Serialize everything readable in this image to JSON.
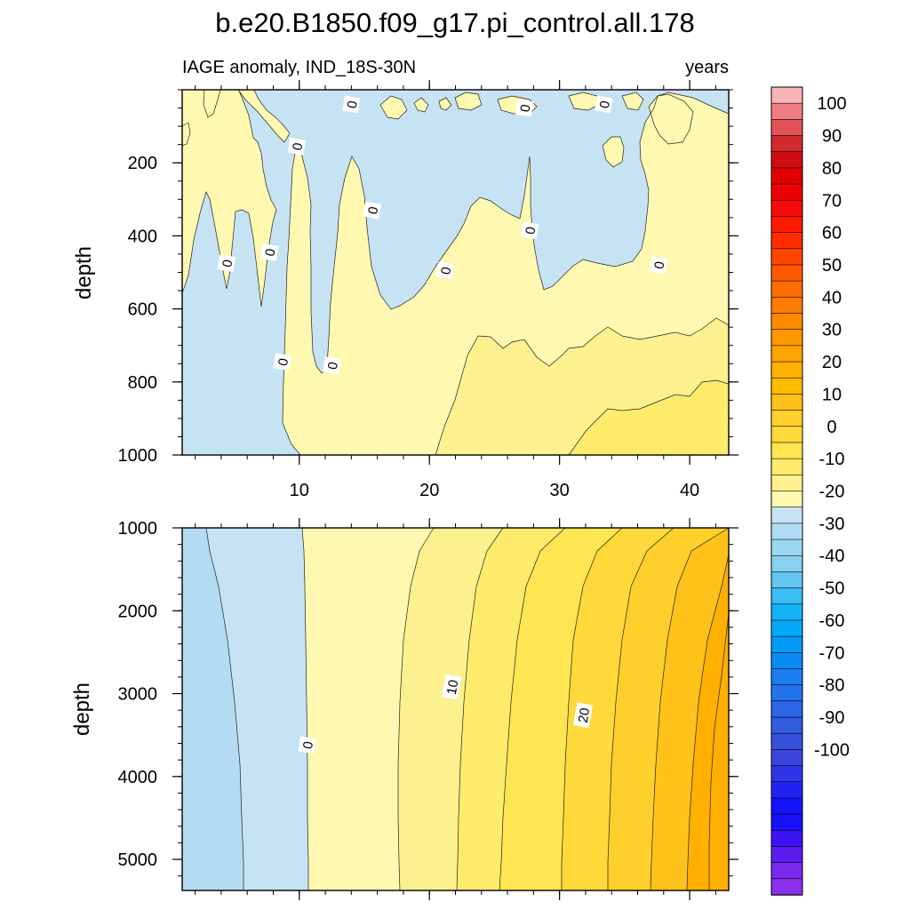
{
  "chart_data": [
    {
      "type": "contour",
      "title": "b.e20.B1850.f09_g17.pi_control.all.178",
      "left_string": "IAGE anomaly, IND_18S-30N",
      "right_string": "years",
      "ylabel": "depth",
      "x": {
        "range": [
          1,
          43
        ],
        "ticks": [
          10,
          20,
          30,
          40
        ],
        "minor_step": 2
      },
      "y": {
        "range": [
          0,
          1000
        ],
        "reversed": true,
        "ticks": [
          200,
          400,
          600,
          800,
          1000
        ],
        "minor_step": 50
      },
      "contour_labels": [
        {
          "text": "0",
          "x": 14,
          "y": 40
        },
        {
          "text": "0",
          "x": 27.3,
          "y": 50
        },
        {
          "text": "0",
          "x": 33.4,
          "y": 40
        },
        {
          "text": "0",
          "x": 9.8,
          "y": 155
        },
        {
          "text": "0",
          "x": 15.6,
          "y": 330
        },
        {
          "text": "0",
          "x": 27.7,
          "y": 385
        },
        {
          "text": "0",
          "x": 4.4,
          "y": 475
        },
        {
          "text": "0",
          "x": 7.7,
          "y": 445
        },
        {
          "text": "0",
          "x": 21.2,
          "y": 495
        },
        {
          "text": "0",
          "x": 37.6,
          "y": 480
        },
        {
          "text": "0",
          "x": 8.7,
          "y": 745
        },
        {
          "text": "0",
          "x": 12.5,
          "y": 755
        }
      ],
      "levels_shown": [
        {
          "value": "-5 to 0",
          "band": "-5..0"
        },
        {
          "value": "0 to 5",
          "band": "0..5"
        },
        {
          "value": "5 to 10",
          "band": "5..10"
        },
        {
          "value": "10 to 15",
          "band": "10..15"
        }
      ]
    },
    {
      "type": "contour",
      "ylabel": "depth",
      "x": {
        "range": [
          1,
          43
        ],
        "ticks": [
          10,
          20,
          30,
          40
        ],
        "minor_step": 2
      },
      "y": {
        "range": [
          1000,
          5375
        ],
        "reversed": true,
        "ticks": [
          1000,
          2000,
          3000,
          4000,
          5000
        ],
        "minor_step": 200
      },
      "contour_labels": [
        {
          "text": "0",
          "x": 10.6,
          "y": 3620
        },
        {
          "text": "10",
          "x": 21.7,
          "y": 2920
        },
        {
          "text": "20",
          "x": 31.8,
          "y": 3260
        }
      ],
      "levels_shown": [
        {
          "value": "-10 to -5",
          "band": "-10..-5"
        },
        {
          "value": "-5 to 0",
          "band": "-5..0"
        },
        {
          "value": "0 to 5",
          "band": "0..5"
        },
        {
          "value": "5 to 10",
          "band": "5..10"
        },
        {
          "value": "10 to 15",
          "band": "10..15"
        },
        {
          "value": "15 to 20",
          "band": "15..20"
        },
        {
          "value": "20 to 25",
          "band": "20..25"
        },
        {
          "value": "25 to 30",
          "band": "25..30"
        },
        {
          "value": "30 to 35",
          "band": "30..35"
        },
        {
          "value": "35 to 40",
          "band": "35..40"
        }
      ]
    }
  ],
  "colorbar": {
    "labels": [
      "100",
      "90",
      "80",
      "70",
      "60",
      "50",
      "40",
      "30",
      "20",
      "10",
      "0",
      "-10",
      "-20",
      "-30",
      "-40",
      "-50",
      "-60",
      "-70",
      "-80",
      "-90",
      "-100"
    ],
    "level_step": 5,
    "colors_top_to_bottom": [
      "#f8b3b6",
      "#ee7e84",
      "#e25256",
      "#d42a2c",
      "#d00c10",
      "#e00000",
      "#ee0000",
      "#f70a0a",
      "#ff1a00",
      "#ff2c00",
      "#ff4500",
      "#ff5a00",
      "#ff6d00",
      "#ff7c00",
      "#ff8a00",
      "#ff9800",
      "#ffa500",
      "#ffb000",
      "#ffbb00",
      "#ffc21a",
      "#ffd02c",
      "#ffd93a",
      "#fee551",
      "#fdeb6b",
      "#fdf08e",
      "#fff8b0",
      "#c6e3f3",
      "#b0ddf3",
      "#9cd7f1",
      "#88d1f0",
      "#63c6f2",
      "#3abcf5",
      "#12b2f6",
      "#06a8f9",
      "#0599f7",
      "#0a8af4",
      "#1a7ef0",
      "#2273ec",
      "#2a66e6",
      "#315ce0",
      "#3550da",
      "#3a44dc",
      "#2e34e8",
      "#2222f2",
      "#1414f8",
      "#1810f6",
      "#3a14f3",
      "#5a1cef",
      "#7a28ec",
      "#8a30ea"
    ]
  },
  "colors": {
    "neg10_5": "#b3dcf2",
    "neg5_0": "#c6e3f3",
    "pos0_5": "#fff8b0",
    "pos5_10": "#fdf08e",
    "pos10_15": "#fdeb6b",
    "pos15_20": "#fee551",
    "pos20_25": "#ffd93a",
    "pos25_30": "#ffd02c",
    "pos30_35": "#ffc21a",
    "pos35_40": "#ffb000"
  }
}
